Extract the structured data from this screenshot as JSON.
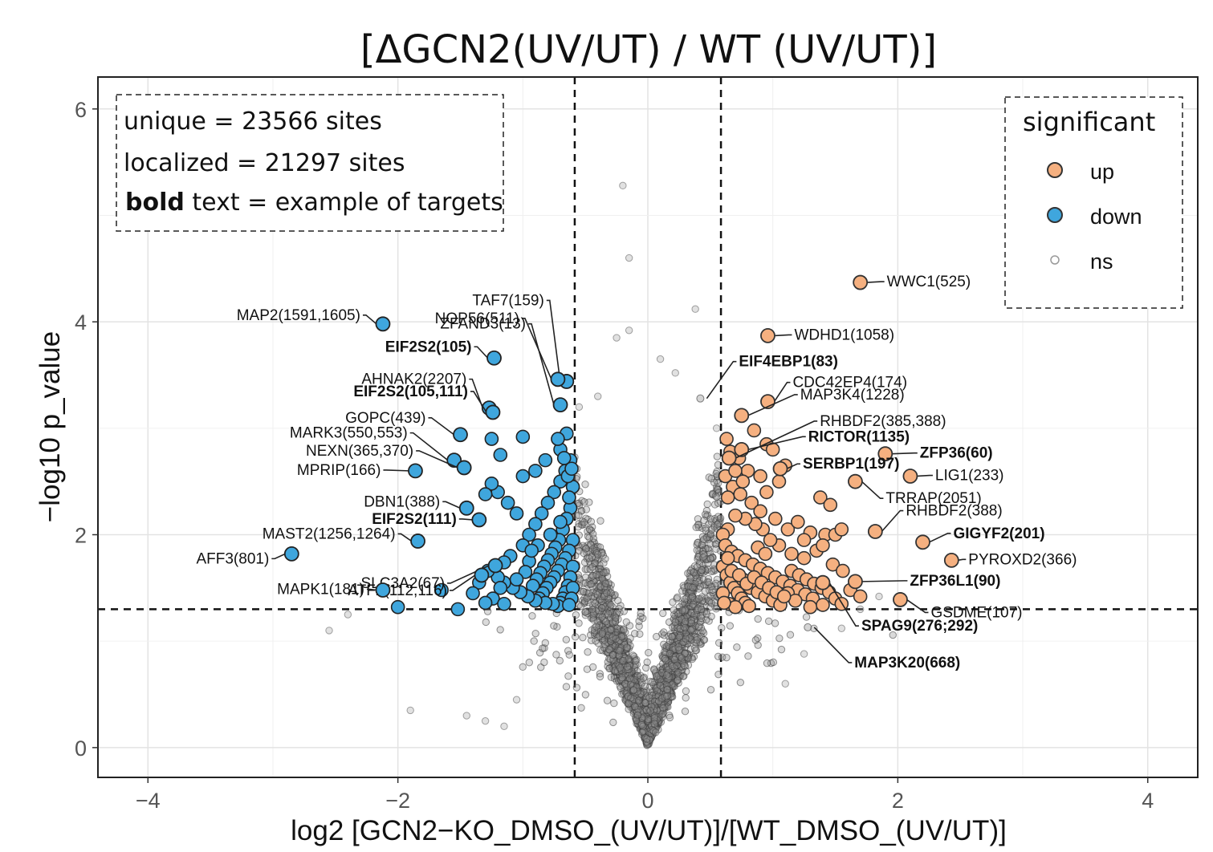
{
  "chart_data": {
    "type": "scatter",
    "title": "[ΔGCN2(UV/UT) / WT (UV/UT)]",
    "xlabel": "log2 [GCN2−KO_DMSO_(UV/UT)]/[WT_DMSO_(UV/UT)]",
    "ylabel": "−log10 p_value",
    "xlim": [
      -4.4,
      4.4
    ],
    "ylim": [
      -0.28,
      6.3
    ],
    "x_ticks": [
      -4,
      -2,
      0,
      2,
      4
    ],
    "x_tick_labels": [
      "−4",
      "−2",
      "0",
      "2",
      "4"
    ],
    "y_ticks": [
      0,
      2,
      4,
      6
    ],
    "y_tick_labels": [
      "0",
      "2",
      "4",
      "6"
    ],
    "grid": true,
    "thresholds": {
      "x": [
        -0.585,
        0.585
      ],
      "y": 1.3
    },
    "legend": {
      "title": "significant",
      "position": "top-right",
      "entries": [
        {
          "label": "up",
          "color": "#f5b080"
        },
        {
          "label": "down",
          "color": "#3fa6dd"
        },
        {
          "label": "ns",
          "color": "#c8c8c8"
        }
      ]
    },
    "annotation_box": {
      "position": "top-left",
      "lines": [
        {
          "text": "unique = 23566 sites",
          "bold_prefix": ""
        },
        {
          "text": "localized = 21297 sites",
          "bold_prefix": ""
        },
        {
          "text": " text = example of targets",
          "bold_prefix": "bold"
        }
      ]
    },
    "labeled_points": [
      {
        "label": "WWC1(525)",
        "x": 1.7,
        "y": 4.37,
        "group": "up",
        "bold": false
      },
      {
        "label": "WDHD1(1058)",
        "x": 0.96,
        "y": 3.87,
        "group": "up",
        "bold": false
      },
      {
        "label": "EIF4EBP1(83)",
        "x": 0.42,
        "y": 3.28,
        "group": "ns",
        "bold": true
      },
      {
        "label": "CDC42EP4(174)",
        "x": 0.96,
        "y": 3.25,
        "group": "up",
        "bold": false
      },
      {
        "label": "MAP3K4(1228)",
        "x": 0.75,
        "y": 3.12,
        "group": "up",
        "bold": false
      },
      {
        "label": "RICTOR(1135)",
        "x": 0.75,
        "y": 2.8,
        "group": "up",
        "bold": true
      },
      {
        "label": "RHBDF2(385,388)",
        "x": 0.65,
        "y": 2.72,
        "group": "up",
        "bold": false
      },
      {
        "label": "ZFP36(60)",
        "x": 1.9,
        "y": 2.76,
        "group": "up",
        "bold": true
      },
      {
        "label": "SERBP1(197)",
        "x": 1.06,
        "y": 2.62,
        "group": "up",
        "bold": true
      },
      {
        "label": "LIG1(233)",
        "x": 2.1,
        "y": 2.55,
        "group": "up",
        "bold": false
      },
      {
        "label": "TRRAP(2051)",
        "x": 1.66,
        "y": 2.5,
        "group": "up",
        "bold": false
      },
      {
        "label": "RHBDF2(388)",
        "x": 1.82,
        "y": 2.03,
        "group": "up",
        "bold": false
      },
      {
        "label": "GIGYF2(201)",
        "x": 2.2,
        "y": 1.93,
        "group": "up",
        "bold": true
      },
      {
        "label": "PYROXD2(366)",
        "x": 2.43,
        "y": 1.76,
        "group": "up",
        "bold": false
      },
      {
        "label": "ZFP36L1(90)",
        "x": 1.66,
        "y": 1.56,
        "group": "up",
        "bold": true
      },
      {
        "label": "GSDME(107)",
        "x": 2.02,
        "y": 1.39,
        "group": "up",
        "bold": false
      },
      {
        "label": "SPAG9(276;292)",
        "x": 1.4,
        "y": 1.55,
        "group": "up",
        "bold": true
      },
      {
        "label": "MAP3K20(668)",
        "x": 1.28,
        "y": 1.13,
        "group": "ns",
        "bold": true
      },
      {
        "label": "TAF7(159)",
        "x": -0.65,
        "y": 3.44,
        "group": "down",
        "bold": false
      },
      {
        "label": "NOP56(511)",
        "x": -0.72,
        "y": 3.46,
        "group": "down",
        "bold": false
      },
      {
        "label": "ZFAND3(13)",
        "x": -0.7,
        "y": 3.22,
        "group": "down",
        "bold": false
      },
      {
        "label": "MAP2(1591,1605)",
        "x": -2.12,
        "y": 3.98,
        "group": "down",
        "bold": false
      },
      {
        "label": "EIF2S2(105)",
        "x": -1.23,
        "y": 3.66,
        "group": "down",
        "bold": true
      },
      {
        "label": "AHNAK2(2207)",
        "x": -1.27,
        "y": 3.19,
        "group": "down",
        "bold": false
      },
      {
        "label": "EIF2S2(105,111)",
        "x": -1.24,
        "y": 3.15,
        "group": "down",
        "bold": true
      },
      {
        "label": "GOPC(439)",
        "x": -1.5,
        "y": 2.94,
        "group": "down",
        "bold": false
      },
      {
        "label": "MARK3(550,553)",
        "x": -1.55,
        "y": 2.7,
        "group": "down",
        "bold": false
      },
      {
        "label": "NEXN(365,370)",
        "x": -1.47,
        "y": 2.63,
        "group": "down",
        "bold": false
      },
      {
        "label": "MPRIP(166)",
        "x": -1.86,
        "y": 2.6,
        "group": "down",
        "bold": false
      },
      {
        "label": "DBN1(388)",
        "x": -1.45,
        "y": 2.25,
        "group": "down",
        "bold": false
      },
      {
        "label": "EIF2S2(111)",
        "x": -1.35,
        "y": 2.14,
        "group": "down",
        "bold": true
      },
      {
        "label": "MAST2(1256,1264)",
        "x": -1.84,
        "y": 1.94,
        "group": "down",
        "bold": false
      },
      {
        "label": "AFF3(801)",
        "x": -2.85,
        "y": 1.82,
        "group": "down",
        "bold": false
      },
      {
        "label": "SLC3A2(67)",
        "x": -1.22,
        "y": 1.71,
        "group": "down",
        "bold": false
      },
      {
        "label": "ATF2(112,116)",
        "x": -1.33,
        "y": 1.62,
        "group": "down",
        "bold": false
      },
      {
        "label": "MAPK1(181)",
        "x": -2.12,
        "y": 1.48,
        "group": "down",
        "bold": false
      }
    ],
    "up_points": [
      [
        0.63,
        2.9
      ],
      [
        0.66,
        2.78
      ],
      [
        0.73,
        2.72
      ],
      [
        0.8,
        2.6
      ],
      [
        0.9,
        2.55
      ],
      [
        0.95,
        2.85
      ],
      [
        1.0,
        2.8
      ],
      [
        1.1,
        2.65
      ],
      [
        0.85,
        2.98
      ],
      [
        0.62,
        2.55
      ],
      [
        0.68,
        2.45
      ],
      [
        0.74,
        2.38
      ],
      [
        0.83,
        2.3
      ],
      [
        0.9,
        2.22
      ],
      [
        1.02,
        2.15
      ],
      [
        1.12,
        2.05
      ],
      [
        1.2,
        2.12
      ],
      [
        1.3,
        2.02
      ],
      [
        1.38,
        2.35
      ],
      [
        1.46,
        2.28
      ],
      [
        1.42,
        2.0
      ],
      [
        1.35,
        1.85
      ],
      [
        1.25,
        1.78
      ],
      [
        1.15,
        1.82
      ],
      [
        1.05,
        1.9
      ],
      [
        0.98,
        1.95
      ],
      [
        0.92,
        2.05
      ],
      [
        0.86,
        2.1
      ],
      [
        0.78,
        2.15
      ],
      [
        0.7,
        2.18
      ],
      [
        0.64,
        2.05
      ],
      [
        0.6,
        2.0
      ],
      [
        0.62,
        1.9
      ],
      [
        0.67,
        1.84
      ],
      [
        0.72,
        1.8
      ],
      [
        0.78,
        1.76
      ],
      [
        0.84,
        1.72
      ],
      [
        0.9,
        1.68
      ],
      [
        0.96,
        1.64
      ],
      [
        1.02,
        1.6
      ],
      [
        1.08,
        1.56
      ],
      [
        1.14,
        1.52
      ],
      [
        1.2,
        1.48
      ],
      [
        1.26,
        1.44
      ],
      [
        1.32,
        1.4
      ],
      [
        0.6,
        1.7
      ],
      [
        0.63,
        1.62
      ],
      [
        0.66,
        1.55
      ],
      [
        0.69,
        1.5
      ],
      [
        0.72,
        1.45
      ],
      [
        0.75,
        1.4
      ],
      [
        0.78,
        1.36
      ],
      [
        0.81,
        1.33
      ],
      [
        0.65,
        1.35
      ],
      [
        0.7,
        1.32
      ],
      [
        0.76,
        1.58
      ],
      [
        0.82,
        1.5
      ],
      [
        0.88,
        1.46
      ],
      [
        0.94,
        1.42
      ],
      [
        1.0,
        1.38
      ],
      [
        1.06,
        1.34
      ],
      [
        1.12,
        1.45
      ],
      [
        1.18,
        1.38
      ],
      [
        0.6,
        1.45
      ],
      [
        0.61,
        1.36
      ],
      [
        0.64,
        1.78
      ],
      [
        0.67,
        1.66
      ],
      [
        0.73,
        1.62
      ],
      [
        0.79,
        1.54
      ],
      [
        0.85,
        1.6
      ],
      [
        0.91,
        1.55
      ],
      [
        0.97,
        1.5
      ],
      [
        1.03,
        1.46
      ],
      [
        1.09,
        1.42
      ],
      [
        1.15,
        1.66
      ],
      [
        1.21,
        1.62
      ],
      [
        1.27,
        1.58
      ],
      [
        1.33,
        1.54
      ],
      [
        1.39,
        1.5
      ],
      [
        1.45,
        1.46
      ],
      [
        1.5,
        1.4
      ],
      [
        1.55,
        1.35
      ],
      [
        1.62,
        1.48
      ],
      [
        1.7,
        1.42
      ],
      [
        1.48,
        1.72
      ],
      [
        1.56,
        1.66
      ],
      [
        1.25,
        1.95
      ],
      [
        1.4,
        1.9
      ],
      [
        1.5,
        2.0
      ],
      [
        0.64,
        2.35
      ],
      [
        0.7,
        2.6
      ],
      [
        0.76,
        2.5
      ],
      [
        0.95,
        2.4
      ],
      [
        1.05,
        2.5
      ],
      [
        1.55,
        2.05
      ],
      [
        1.3,
        1.32
      ],
      [
        1.4,
        1.34
      ],
      [
        0.88,
        1.88
      ],
      [
        0.94,
        1.82
      ]
    ],
    "down_points": [
      [
        -0.62,
        2.7
      ],
      [
        -0.66,
        2.6
      ],
      [
        -0.7,
        2.5
      ],
      [
        -0.75,
        2.4
      ],
      [
        -0.8,
        2.3
      ],
      [
        -0.85,
        2.2
      ],
      [
        -0.9,
        2.1
      ],
      [
        -0.95,
        2.0
      ],
      [
        -1.0,
        1.9
      ],
      [
        -0.62,
        2.25
      ],
      [
        -0.65,
        2.15
      ],
      [
        -0.68,
        2.05
      ],
      [
        -0.71,
        1.95
      ],
      [
        -0.74,
        1.88
      ],
      [
        -0.77,
        1.82
      ],
      [
        -0.8,
        1.76
      ],
      [
        -0.83,
        1.7
      ],
      [
        -0.86,
        1.64
      ],
      [
        -0.89,
        1.58
      ],
      [
        -0.92,
        1.52
      ],
      [
        -0.6,
        1.95
      ],
      [
        -0.63,
        1.85
      ],
      [
        -0.66,
        1.78
      ],
      [
        -0.69,
        1.72
      ],
      [
        -0.72,
        1.66
      ],
      [
        -0.75,
        1.6
      ],
      [
        -0.78,
        1.55
      ],
      [
        -0.81,
        1.5
      ],
      [
        -0.84,
        1.45
      ],
      [
        -0.87,
        1.4
      ],
      [
        -0.6,
        1.7
      ],
      [
        -0.62,
        1.6
      ],
      [
        -0.64,
        1.52
      ],
      [
        -0.66,
        1.46
      ],
      [
        -0.68,
        1.4
      ],
      [
        -0.7,
        1.36
      ],
      [
        -0.72,
        1.33
      ],
      [
        -0.6,
        1.5
      ],
      [
        -0.61,
        1.4
      ],
      [
        -0.63,
        1.34
      ],
      [
        -0.76,
        1.35
      ],
      [
        -0.82,
        1.36
      ],
      [
        -0.9,
        1.38
      ],
      [
        -0.96,
        1.42
      ],
      [
        -1.02,
        1.46
      ],
      [
        -1.08,
        1.5
      ],
      [
        -1.15,
        1.55
      ],
      [
        -1.2,
        1.6
      ],
      [
        -1.28,
        1.66
      ],
      [
        -1.1,
        1.8
      ],
      [
        -1.15,
        1.74
      ],
      [
        -1.05,
        2.2
      ],
      [
        -1.12,
        2.3
      ],
      [
        -1.2,
        2.4
      ],
      [
        -1.25,
        2.48
      ],
      [
        -1.3,
        2.38
      ],
      [
        -1.0,
        2.55
      ],
      [
        -0.9,
        2.6
      ],
      [
        -0.82,
        2.7
      ],
      [
        -0.7,
        2.8
      ],
      [
        -0.65,
        2.95
      ],
      [
        -0.72,
        2.9
      ],
      [
        -1.0,
        2.92
      ],
      [
        -1.25,
        2.9
      ],
      [
        -1.18,
        2.75
      ],
      [
        -0.95,
        1.75
      ],
      [
        -0.98,
        1.65
      ],
      [
        -1.05,
        1.58
      ],
      [
        -1.18,
        1.5
      ],
      [
        -1.24,
        1.4
      ],
      [
        -1.3,
        1.36
      ],
      [
        -1.52,
        1.3
      ],
      [
        -1.35,
        1.55
      ],
      [
        -0.6,
        2.45
      ],
      [
        -0.63,
        2.35
      ],
      [
        -0.88,
        1.9
      ],
      [
        -0.78,
        2.0
      ],
      [
        -0.7,
        2.12
      ],
      [
        -0.93,
        1.85
      ],
      [
        -1.15,
        1.35
      ],
      [
        -1.4,
        1.45
      ],
      [
        -0.64,
        2.55
      ],
      [
        -0.61,
        2.62
      ],
      [
        -0.67,
        2.72
      ],
      [
        -2.0,
        1.32
      ],
      [
        -1.65,
        1.48
      ]
    ]
  }
}
